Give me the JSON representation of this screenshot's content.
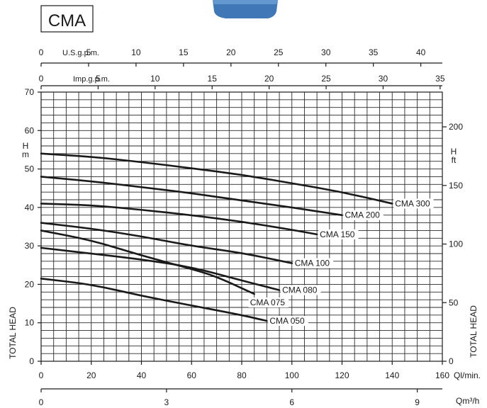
{
  "title": "CMA",
  "colors": {
    "ink": "#1a1a1a",
    "pump_body": "#3f77b7"
  },
  "chart_data": {
    "type": "line",
    "x_primary": {
      "label": "Ql/min.",
      "lim": [
        0,
        160
      ],
      "ticks": [
        0,
        20,
        40,
        60,
        80,
        100,
        120,
        140,
        160
      ]
    },
    "x_m3h": {
      "label": "Qm³/h",
      "ticks": [
        "0",
        "3",
        "6",
        "9"
      ]
    },
    "x_usgpm": {
      "label": "U.S.g.p.m.",
      "ticks": [
        0,
        5,
        10,
        15,
        20,
        25,
        30,
        35,
        40
      ]
    },
    "x_impgpm": {
      "label": "Imp.g.p.m.",
      "ticks": [
        0,
        5,
        10,
        15,
        20,
        25,
        30,
        35
      ]
    },
    "y_left": {
      "unit": "H m",
      "title": "TOTAL HEAD",
      "lim": [
        0,
        70
      ],
      "ticks": [
        0,
        10,
        20,
        30,
        40,
        50,
        60,
        70
      ]
    },
    "y_right": {
      "unit": "H ft",
      "title": "TOTAL HEAD",
      "ticks": [
        0,
        50,
        100,
        150,
        200
      ]
    },
    "grid": true,
    "series": [
      {
        "name": "CMA 300",
        "x": [
          0,
          20,
          40,
          60,
          80,
          100,
          120,
          140
        ],
        "y": [
          54,
          53.2,
          51.8,
          50.2,
          48.5,
          46.3,
          44,
          41
        ]
      },
      {
        "name": "CMA 200",
        "x": [
          0,
          20,
          40,
          60,
          80,
          100,
          120
        ],
        "y": [
          48,
          46.8,
          45.3,
          43.7,
          41.8,
          40,
          38
        ]
      },
      {
        "name": "CMA 150",
        "x": [
          0,
          20,
          40,
          60,
          80,
          100,
          110
        ],
        "y": [
          41,
          40.6,
          39.4,
          38,
          36.3,
          34.2,
          33
        ]
      },
      {
        "name": "CMA 100",
        "x": [
          0,
          20,
          40,
          60,
          80,
          100
        ],
        "y": [
          36,
          34.5,
          32.5,
          30,
          28.2,
          25.5
        ]
      },
      {
        "name": "CMA 080",
        "x": [
          0,
          20,
          40,
          60,
          80,
          95
        ],
        "y": [
          29.5,
          28,
          26.5,
          24.5,
          21,
          18.5
        ]
      },
      {
        "name": "CMA 075",
        "x": [
          0,
          20,
          40,
          60,
          70,
          85
        ],
        "y": [
          34,
          31.5,
          27.5,
          24,
          22,
          17.5
        ]
      },
      {
        "name": "CMA 050",
        "x": [
          0,
          20,
          40,
          60,
          80,
          90
        ],
        "y": [
          21.5,
          20,
          17,
          14.5,
          12,
          10.5
        ]
      }
    ]
  }
}
